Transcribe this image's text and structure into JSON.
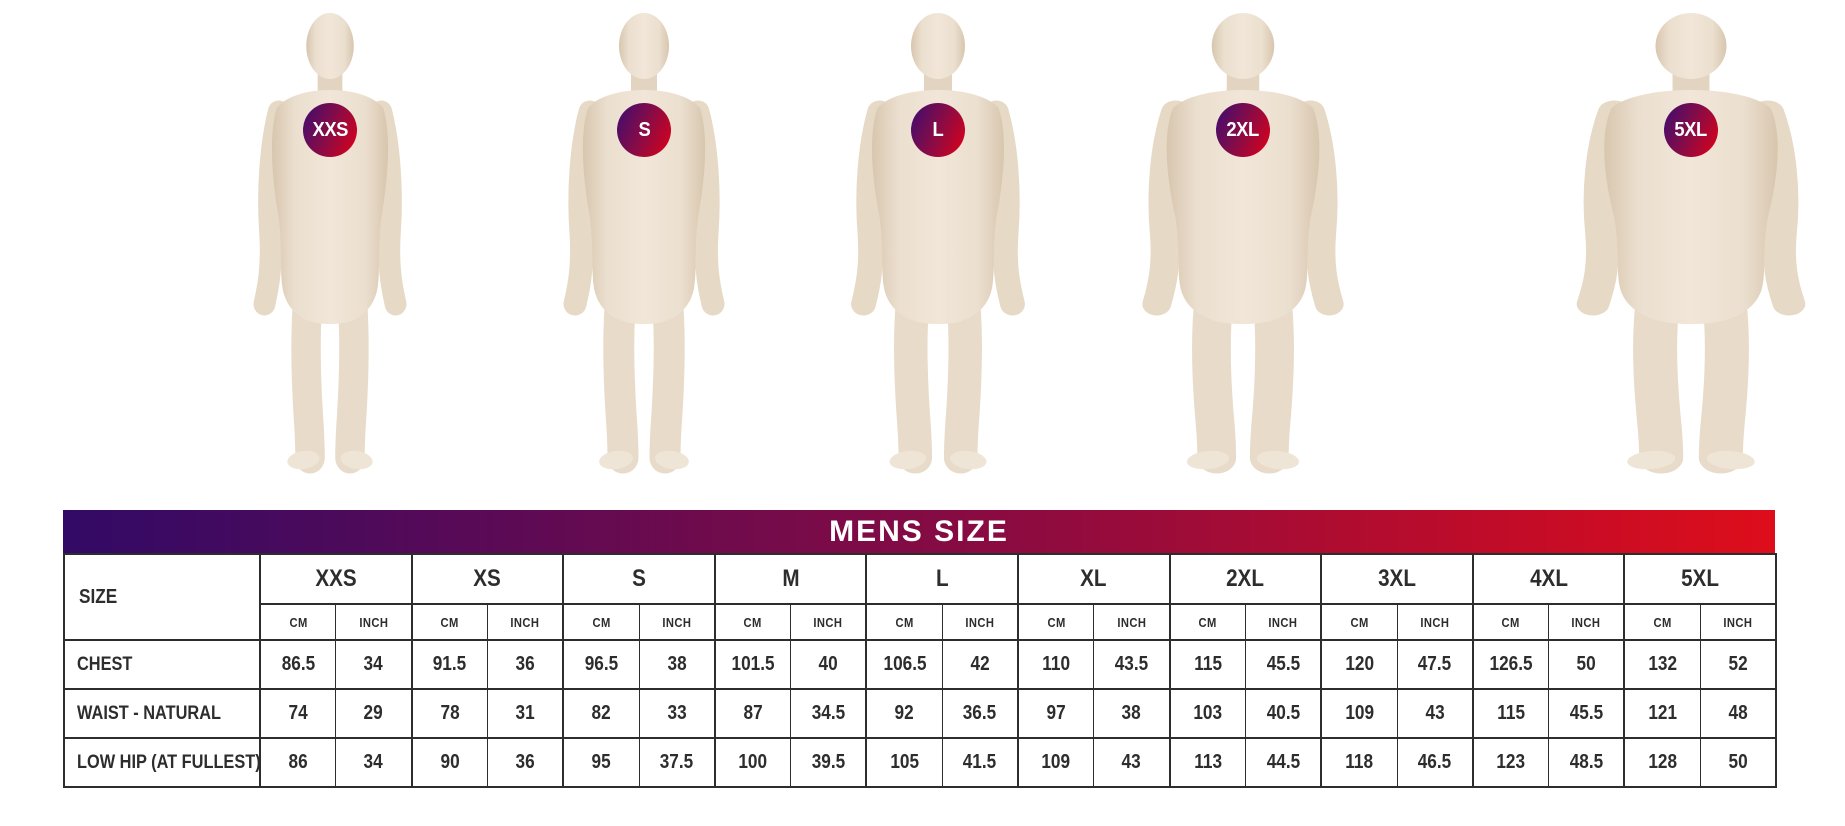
{
  "figures": [
    {
      "badge": "XXS"
    },
    {
      "badge": "S"
    },
    {
      "badge": "L"
    },
    {
      "badge": "2XL"
    },
    {
      "badge": "5XL"
    }
  ],
  "colors": {
    "gradient_start": "#320a66",
    "gradient_mid": "#8b0b41",
    "gradient_end": "#de0d1b",
    "badge_text": "#ffffff",
    "mannequin_skin": "#e8dccb",
    "table_border": "#2d2d2d",
    "table_text": "#2d2d2d",
    "background": "#ffffff"
  },
  "chart_data": {
    "type": "table",
    "title": "MENS SIZE",
    "corner_label": "SIZE",
    "unit_labels": [
      "CM",
      "INCH"
    ],
    "sizes": [
      "XXS",
      "XS",
      "S",
      "M",
      "L",
      "XL",
      "2XL",
      "3XL",
      "4XL",
      "5XL"
    ],
    "rows": [
      {
        "label": "CHEST",
        "cm": [
          86.5,
          91.5,
          96.5,
          101.5,
          106.5,
          110,
          115,
          120,
          126.5,
          132
        ],
        "inch": [
          34,
          36,
          38,
          40,
          42,
          43.5,
          45.5,
          47.5,
          50,
          52
        ]
      },
      {
        "label": "WAIST - NATURAL",
        "cm": [
          74,
          78,
          82,
          87,
          92,
          97,
          103,
          109,
          115,
          121
        ],
        "inch": [
          29,
          31,
          33,
          34.5,
          36.5,
          38,
          40.5,
          43,
          45.5,
          48
        ]
      },
      {
        "label": "LOW HIP (AT FULLEST)",
        "cm": [
          86,
          90,
          95,
          100,
          105,
          109,
          113,
          118,
          123,
          128
        ],
        "inch": [
          34,
          36,
          37.5,
          39.5,
          41.5,
          43,
          44.5,
          46.5,
          48.5,
          50
        ]
      }
    ]
  }
}
